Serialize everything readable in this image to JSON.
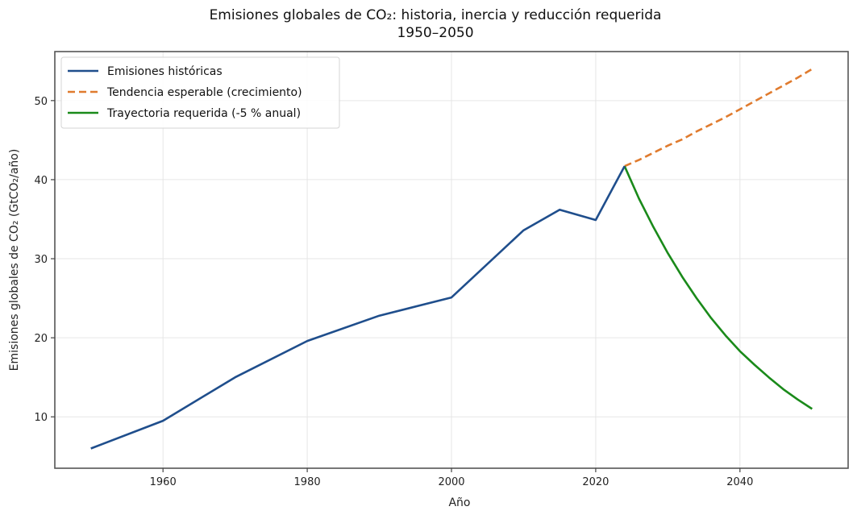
{
  "chart_data": {
    "type": "line",
    "title": "Emisiones globales de CO₂: historia, inercia y reducción requerida",
    "subtitle": "1950–2050",
    "xlabel": "Año",
    "ylabel": "Emisiones globales de CO₂ (GtCO₂/año)",
    "xlim": [
      1945,
      2055
    ],
    "ylim": [
      3.5,
      56.2
    ],
    "xticks": [
      1960,
      1980,
      2000,
      2020,
      2040
    ],
    "yticks": [
      10,
      20,
      30,
      40,
      50
    ],
    "grid": true,
    "legend_position": "top-left",
    "series": [
      {
        "name": "Emisiones históricas",
        "color": "#1f4e8c",
        "style": "solid",
        "x": [
          1950,
          1960,
          1970,
          1980,
          1990,
          2000,
          2010,
          2015,
          2020,
          2024
        ],
        "y": [
          6.0,
          9.5,
          15.0,
          19.6,
          22.8,
          25.1,
          33.6,
          36.2,
          34.9,
          41.7
        ]
      },
      {
        "name": "Tendencia esperable (crecimiento)",
        "color": "#e07b2e",
        "style": "dashed",
        "x": [
          2024,
          2026,
          2028,
          2030,
          2032,
          2034,
          2036,
          2038,
          2040,
          2042,
          2044,
          2046,
          2048,
          2050
        ],
        "y": [
          41.7,
          42.5,
          43.4,
          44.3,
          45.1,
          46.1,
          47.0,
          47.9,
          48.9,
          49.9,
          50.9,
          51.9,
          52.9,
          54.0
        ]
      },
      {
        "name": "Trayectoria requerida (-5 % anual)",
        "color": "#1a8a1a",
        "style": "solid",
        "x": [
          2024,
          2026,
          2028,
          2030,
          2032,
          2034,
          2036,
          2038,
          2040,
          2042,
          2044,
          2046,
          2048,
          2050
        ],
        "y": [
          41.7,
          37.6,
          34.0,
          30.7,
          27.7,
          25.0,
          22.5,
          20.3,
          18.3,
          16.6,
          15.0,
          13.5,
          12.2,
          11.0
        ]
      }
    ]
  }
}
